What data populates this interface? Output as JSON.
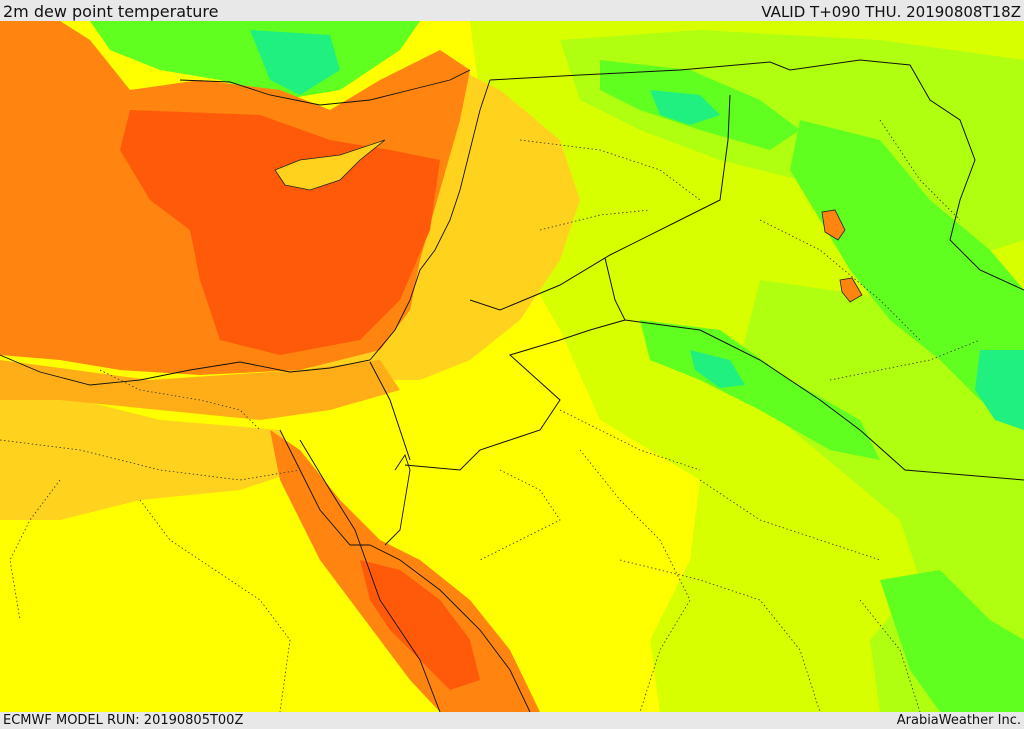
{
  "header": {
    "title": "2m dew point temperature",
    "valid_time": "VALID T+090 THU. 20190808T18Z"
  },
  "footer": {
    "model_run": "ECMWF MODEL RUN: 20190805T00Z",
    "credit": "ArabiaWeather Inc."
  },
  "palette": {
    "dark_orange": "#ff5a0a",
    "orange": "#ff8410",
    "orange_yellow": "#ffae18",
    "gold": "#ffd21e",
    "yellow": "#ffff00",
    "yellow_green": "#d8ff00",
    "lime": "#b0ff10",
    "green": "#60ff20",
    "cyan_green": "#20f080"
  }
}
